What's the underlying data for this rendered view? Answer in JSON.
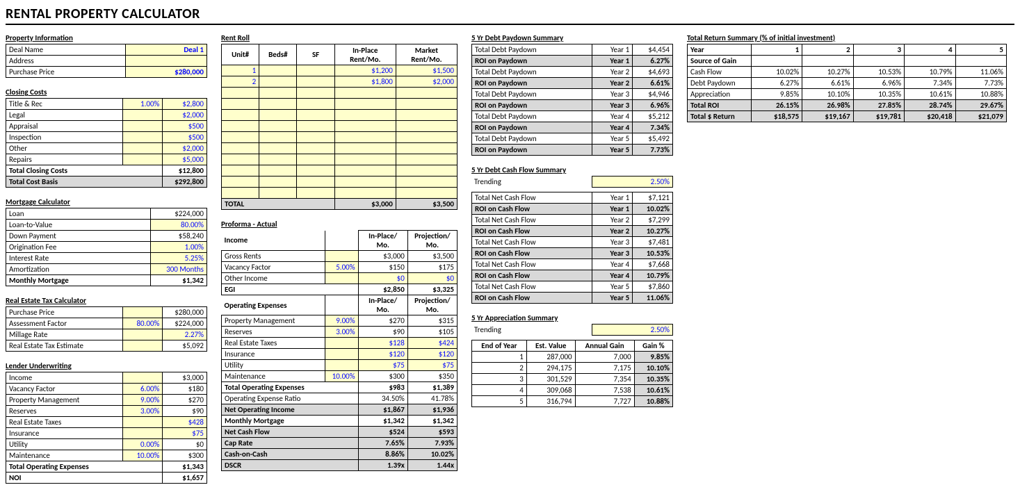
{
  "title": "RENTAL PROPERTY CALCULATOR",
  "propInfo": {
    "heading": "Property Information",
    "rows": [
      {
        "label": "Deal Name",
        "val": "Deal 1",
        "yel": true,
        "blu": true
      },
      {
        "label": "Address",
        "val": "",
        "yel": true
      },
      {
        "label": "Purchase Price",
        "val": "$280,000",
        "yel": true,
        "blu": true
      }
    ]
  },
  "closing": {
    "heading": "Closing Costs",
    "rows": [
      {
        "label": "Title & Rec",
        "pct": "1.00%",
        "val": "$2,800"
      },
      {
        "label": "Legal",
        "pct": "",
        "val": "$2,000"
      },
      {
        "label": "Appraisal",
        "pct": "",
        "val": "$500"
      },
      {
        "label": "Inspection",
        "pct": "",
        "val": "$500"
      },
      {
        "label": "Other",
        "pct": "",
        "val": "$2,000"
      },
      {
        "label": "Repairs",
        "pct": "",
        "val": "$5,000"
      }
    ],
    "total1": {
      "label": "Total Closing Costs",
      "val": "$12,800"
    },
    "total2": {
      "label": "Total Cost Basis",
      "val": "$292,800"
    }
  },
  "mortgage": {
    "heading": "Mortgage Calculator",
    "rows": [
      {
        "label": "Loan",
        "val": "$224,000"
      },
      {
        "label": "Loan-to-Value",
        "val": "80.00%",
        "yel": true,
        "blu": true
      },
      {
        "label": "Down Payment",
        "val": "$58,240"
      },
      {
        "label": "Origination Fee",
        "val": "1.00%",
        "yel": true,
        "blu": true
      },
      {
        "label": "Interest Rate",
        "val": "5.25%",
        "yel": true,
        "blu": true
      },
      {
        "label": "Amortization",
        "val": "300 Months",
        "yel": true,
        "blu": true
      }
    ],
    "total": {
      "label": "Monthly Mortgage",
      "val": "$1,342"
    }
  },
  "retax": {
    "heading": "Real Estate Tax Calculator",
    "rows": [
      {
        "label": "Purchase Price",
        "pct": "",
        "val": "$280,000"
      },
      {
        "label": "Assessment Factor",
        "pct": "80.00%",
        "val": "$224,000"
      },
      {
        "label": "Millage Rate",
        "pct": "",
        "val": "2.27%",
        "yel": true,
        "blu": true
      },
      {
        "label": "Real Estate Tax Estimate",
        "pct": "",
        "val": "$5,092"
      }
    ]
  },
  "lender": {
    "heading": "Lender Underwriting",
    "rows": [
      {
        "label": "Income",
        "pct": "",
        "val": "$3,000"
      },
      {
        "label": "Vacancy Factor",
        "pct": "6.00%",
        "val": "$180"
      },
      {
        "label": "Property Management",
        "pct": "9.00%",
        "val": "$270"
      },
      {
        "label": "Reserves",
        "pct": "3.00%",
        "val": "$90"
      },
      {
        "label": "Real Estate Taxes",
        "pct": "",
        "val": "$428",
        "yel": true,
        "blu": true
      },
      {
        "label": "Insurance",
        "pct": "",
        "val": "$75",
        "yel": true,
        "blu": true
      },
      {
        "label": "Utility",
        "pct": "0.00%",
        "val": "$0"
      },
      {
        "label": "Maintenance",
        "pct": "10.00%",
        "val": "$300"
      }
    ],
    "totals": [
      {
        "label": "Total Operating Expenses",
        "val": "$1,343"
      },
      {
        "label": "NOI",
        "val": "$1,657"
      }
    ]
  },
  "rentroll": {
    "heading": "Rent Roll",
    "headers": [
      "Unit#",
      "Beds#",
      "SF",
      "In-Place Rent/Mo.",
      "Market Rent/Mo."
    ],
    "rows": [
      {
        "unit": "1",
        "beds": "",
        "sf": "",
        "inplace": "$1,200",
        "market": "$1,500"
      },
      {
        "unit": "2",
        "beds": "",
        "sf": "",
        "inplace": "$1,800",
        "market": "$2,000"
      },
      {
        "unit": "",
        "beds": "",
        "sf": "",
        "inplace": "",
        "market": ""
      },
      {
        "unit": "",
        "beds": "",
        "sf": "",
        "inplace": "",
        "market": ""
      },
      {
        "unit": "",
        "beds": "",
        "sf": "",
        "inplace": "",
        "market": ""
      },
      {
        "unit": "",
        "beds": "",
        "sf": "",
        "inplace": "",
        "market": ""
      },
      {
        "unit": "",
        "beds": "",
        "sf": "",
        "inplace": "",
        "market": ""
      },
      {
        "unit": "",
        "beds": "",
        "sf": "",
        "inplace": "",
        "market": ""
      },
      {
        "unit": "",
        "beds": "",
        "sf": "",
        "inplace": "",
        "market": ""
      },
      {
        "unit": "",
        "beds": "",
        "sf": "",
        "inplace": "",
        "market": ""
      },
      {
        "unit": "",
        "beds": "",
        "sf": "",
        "inplace": "",
        "market": ""
      },
      {
        "unit": "",
        "beds": "",
        "sf": "",
        "inplace": "",
        "market": ""
      }
    ],
    "total": {
      "label": "TOTAL",
      "inplace": "$3,000",
      "market": "$3,500"
    }
  },
  "proforma": {
    "heading": "Proforma - Actual",
    "incomeHdr": {
      "c1": "Income",
      "c3": "In-Place/ Mo.",
      "c4": "Projection/ Mo."
    },
    "income": [
      {
        "label": "Gross Rents",
        "pct": "",
        "v1": "$3,000",
        "v2": "$3,500"
      },
      {
        "label": "Vacancy Factor",
        "pct": "5.00%",
        "v1": "$150",
        "v2": "$175"
      },
      {
        "label": "Other Income",
        "pct": "",
        "v1": "$0",
        "v2": "$0",
        "blu": true,
        "yel": true
      }
    ],
    "egi": {
      "label": "EGI",
      "v1": "$2,850",
      "v2": "$3,325"
    },
    "opHdr": {
      "c1": "Operating Expenses",
      "c3": "In-Place/ Mo.",
      "c4": "Projection/ Mo."
    },
    "op": [
      {
        "label": "Property Management",
        "pct": "9.00%",
        "v1": "$270",
        "v2": "$315"
      },
      {
        "label": "Reserves",
        "pct": "3.00%",
        "v1": "$90",
        "v2": "$105"
      },
      {
        "label": "Real Estate Taxes",
        "pct": "",
        "v1": "$128",
        "v2": "$424",
        "blu": true,
        "yel": true
      },
      {
        "label": "Insurance",
        "pct": "",
        "v1": "$120",
        "v2": "$120",
        "blu": true,
        "yel": true
      },
      {
        "label": "Utility",
        "pct": "",
        "v1": "$75",
        "v2": "$75",
        "blu": true,
        "yel": true
      },
      {
        "label": "Maintenance",
        "pct": "10.00%",
        "v1": "$300",
        "v2": "$350"
      }
    ],
    "totOp": {
      "label": "Total Operating Expenses",
      "v1": "$983",
      "v2": "$1,389"
    },
    "opRatio": {
      "label": "Operating Expense Ratio",
      "v1": "34.50%",
      "v2": "41.78%"
    },
    "noi": {
      "label": "Net Operating Income",
      "v1": "$1,867",
      "v2": "$1,936"
    },
    "mm": {
      "label": "Monthly Mortgage",
      "v1": "$1,342",
      "v2": "$1,342"
    },
    "ncf": {
      "label": "Net Cash Flow",
      "v1": "$524",
      "v2": "$593"
    },
    "cap": {
      "label": "Cap Rate",
      "v1": "7.65%",
      "v2": "7.93%"
    },
    "coc": {
      "label": "Cash-on-Cash",
      "v1": "8.86%",
      "v2": "10.02%"
    },
    "dscr": {
      "label": "DSCR",
      "v1": "1.39x",
      "v2": "1.44x"
    }
  },
  "paydown": {
    "heading": "5 Yr Debt Paydown Summary",
    "rows": [
      {
        "l": "Total Debt Paydown",
        "y": "Year 1",
        "v": "$4,454"
      },
      {
        "l": "ROI on Paydown",
        "y": "Year 1",
        "v": "6.27%",
        "g": true
      },
      {
        "l": "Total Debt Paydown",
        "y": "Year 2",
        "v": "$4,693"
      },
      {
        "l": "ROI on Paydown",
        "y": "Year 2",
        "v": "6.61%",
        "g": true
      },
      {
        "l": "Total Debt Paydown",
        "y": "Year 3",
        "v": "$4,946"
      },
      {
        "l": "ROI on Paydown",
        "y": "Year 3",
        "v": "6.96%",
        "g": true
      },
      {
        "l": "Total Debt Paydown",
        "y": "Year 4",
        "v": "$5,212"
      },
      {
        "l": "ROI on Paydown",
        "y": "Year 4",
        "v": "7.34%",
        "g": true
      },
      {
        "l": "Total Debt Paydown",
        "y": "Year 5",
        "v": "$5,492"
      },
      {
        "l": "ROI on Paydown",
        "y": "Year 5",
        "v": "7.73%",
        "g": true
      }
    ]
  },
  "cashflow": {
    "heading": "5 Yr Debt Cash Flow Summary",
    "trending": "Trending",
    "trendVal": "2.50%",
    "rows": [
      {
        "l": "Total Net Cash Flow",
        "y": "Year 1",
        "v": "$7,121"
      },
      {
        "l": "ROI on Cash Flow",
        "y": "Year 1",
        "v": "10.02%",
        "g": true
      },
      {
        "l": "Total Net Cash Flow",
        "y": "Year 2",
        "v": "$7,299"
      },
      {
        "l": "ROI on Cash Flow",
        "y": "Year 2",
        "v": "10.27%",
        "g": true
      },
      {
        "l": "Total Net Cash Flow",
        "y": "Year 3",
        "v": "$7,481"
      },
      {
        "l": "ROI on Cash Flow",
        "y": "Year 3",
        "v": "10.53%",
        "g": true
      },
      {
        "l": "Total Net Cash Flow",
        "y": "Year 4",
        "v": "$7,668"
      },
      {
        "l": "ROI on Cash Flow",
        "y": "Year 4",
        "v": "10.79%",
        "g": true
      },
      {
        "l": "Total Net Cash Flow",
        "y": "Year 5",
        "v": "$7,860"
      },
      {
        "l": "ROI on Cash Flow",
        "y": "Year 5",
        "v": "11.06%",
        "g": true
      }
    ]
  },
  "apprec": {
    "heading": "5 Yr Appreciation Summary",
    "trending": "Trending",
    "trendVal": "2.50%",
    "headers": [
      "End of Year",
      "Est. Value",
      "Annual Gain",
      "Gain %"
    ],
    "rows": [
      {
        "y": "1",
        "ev": "287,000",
        "ag": "7,000",
        "gp": "9.85%"
      },
      {
        "y": "2",
        "ev": "294,175",
        "ag": "7,175",
        "gp": "10.10%"
      },
      {
        "y": "3",
        "ev": "301,529",
        "ag": "7,354",
        "gp": "10.35%"
      },
      {
        "y": "4",
        "ev": "309,068",
        "ag": "7,538",
        "gp": "10.61%"
      },
      {
        "y": "5",
        "ev": "316,794",
        "ag": "7,727",
        "gp": "10.88%"
      }
    ]
  },
  "totret": {
    "heading": "Total Return Summary (% of initial investment)",
    "yearLbl": "Year",
    "years": [
      "1",
      "2",
      "3",
      "4",
      "5"
    ],
    "srcLbl": "Source of Gain",
    "rows": [
      {
        "l": "Cash Flow",
        "v": [
          "10.02%",
          "10.27%",
          "10.53%",
          "10.79%",
          "11.06%"
        ]
      },
      {
        "l": "Debt Paydown",
        "v": [
          "6.27%",
          "6.61%",
          "6.96%",
          "7.34%",
          "7.73%"
        ]
      },
      {
        "l": "Appreciation",
        "v": [
          "9.85%",
          "10.10%",
          "10.35%",
          "10.61%",
          "10.88%"
        ]
      }
    ],
    "totRoi": {
      "l": "Total ROI",
      "v": [
        "26.15%",
        "26.98%",
        "27.85%",
        "28.74%",
        "29.67%"
      ]
    },
    "totDol": {
      "l": "Total $ Return",
      "v": [
        "$18,575",
        "$19,167",
        "$19,781",
        "$20,418",
        "$21,079"
      ]
    }
  }
}
